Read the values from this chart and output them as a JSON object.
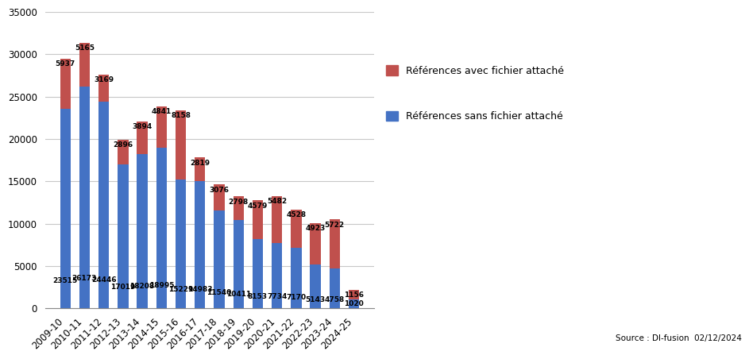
{
  "categories": [
    "2009-10",
    "2010-11",
    "2011-12",
    "2012-13",
    "2013-14",
    "2014-15",
    "2015-16",
    "2016-17",
    "2017-18",
    "2018-19",
    "2019-20",
    "2020-21",
    "2021-22",
    "2022-23",
    "2023-24",
    "2024-25"
  ],
  "sans_fichier": [
    23515,
    26173,
    24446,
    17019,
    18208,
    18995,
    15229,
    14983,
    11540,
    10411,
    8153,
    7734,
    7170,
    5143,
    4758,
    1020
  ],
  "avec_fichier": [
    5937,
    5165,
    3169,
    2896,
    3894,
    4841,
    8158,
    2819,
    3076,
    2798,
    4579,
    5482,
    4528,
    4923,
    5722,
    1156
  ],
  "color_sans": "#4472C4",
  "color_avec": "#C0504D",
  "ylim": [
    0,
    35000
  ],
  "yticks": [
    0,
    5000,
    10000,
    15000,
    20000,
    25000,
    30000,
    35000
  ],
  "legend_avec": "Références avec fichier attaché",
  "legend_sans": "Références sans fichier attaché",
  "source_text": "Source : DI-fusion  02/12/2024",
  "background_color": "#ffffff",
  "label_fontsize": 6.5,
  "tick_fontsize": 8.5,
  "bar_width": 0.55
}
